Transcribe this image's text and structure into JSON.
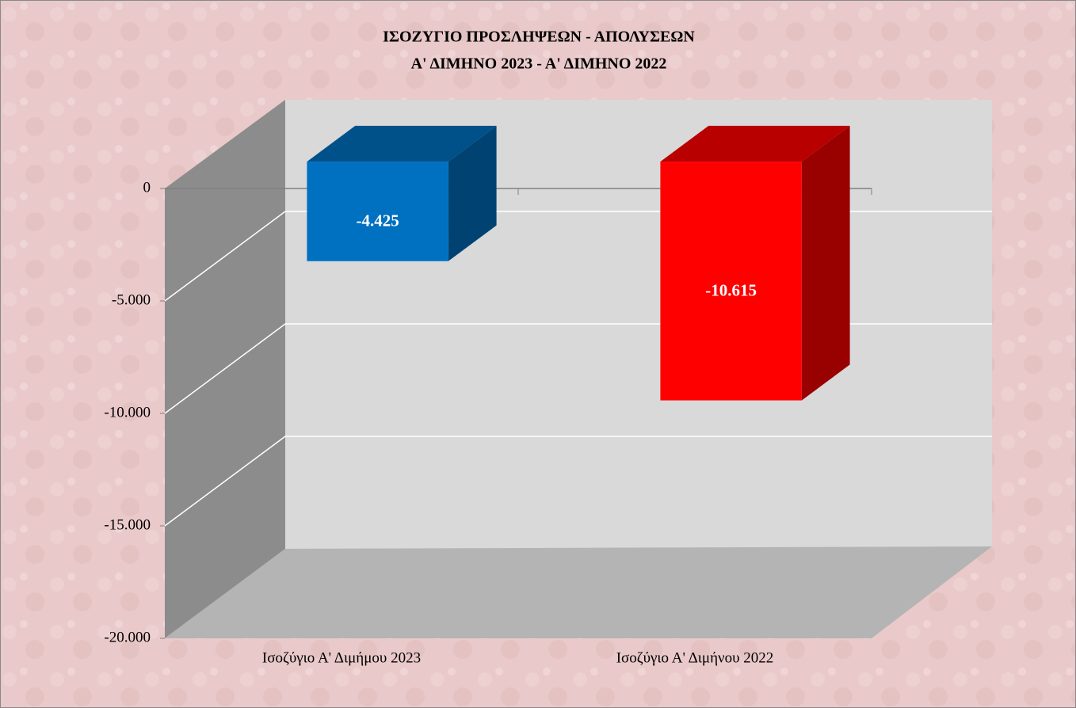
{
  "chart_data": {
    "type": "bar3d",
    "title": "ΙΣΟΖΥΓΙΟ  ΠΡΟΣΛΗΨΕΩΝ  -  ΑΠΟΛΥΣΕΩΝ",
    "subtitle": "Α' ΔΙΜΗΝΟ 2023  -  Α' ΔΙΜΗΝΟ 2022",
    "categories": [
      "Ισοζύγιο Α' Διμήμου  2023",
      "Ισοζύγιο Α' Διμήνου 2022"
    ],
    "values": [
      -4425,
      -10615
    ],
    "value_labels": [
      "-4.425",
      "-10.615"
    ],
    "colors": [
      "#0070c0",
      "#ff0000"
    ],
    "ylim": [
      -20000,
      0
    ],
    "yticks": [
      0,
      {
        "value": -5000,
        "label": "-5.000"
      },
      {
        "value": -10000,
        "label": "-10.000"
      },
      {
        "value": -15000,
        "label": "-15.000"
      },
      {
        "value": -20000,
        "label": "-20.000"
      }
    ],
    "grid": true
  }
}
